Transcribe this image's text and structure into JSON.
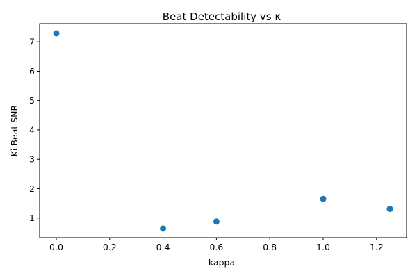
{
  "chart_data": {
    "type": "scatter",
    "title": "Beat Detectability vs κ",
    "xlabel": "kappa",
    "ylabel": "Ki Beat SNR",
    "xlim": [
      -0.0625,
      1.3125
    ],
    "ylim": [
      0.33,
      7.62
    ],
    "xticks": [
      "0.0",
      "0.2",
      "0.4",
      "0.6",
      "0.8",
      "1.0",
      "1.2"
    ],
    "yticks": [
      "1",
      "2",
      "3",
      "4",
      "5",
      "6",
      "7"
    ],
    "grid": false,
    "legend": "none",
    "marker_color": "#1f77b4",
    "points": [
      {
        "x": 0.0,
        "y": 7.29
      },
      {
        "x": 0.4,
        "y": 0.64
      },
      {
        "x": 0.6,
        "y": 0.88
      },
      {
        "x": 1.0,
        "y": 1.65
      },
      {
        "x": 1.25,
        "y": 1.31
      }
    ]
  }
}
